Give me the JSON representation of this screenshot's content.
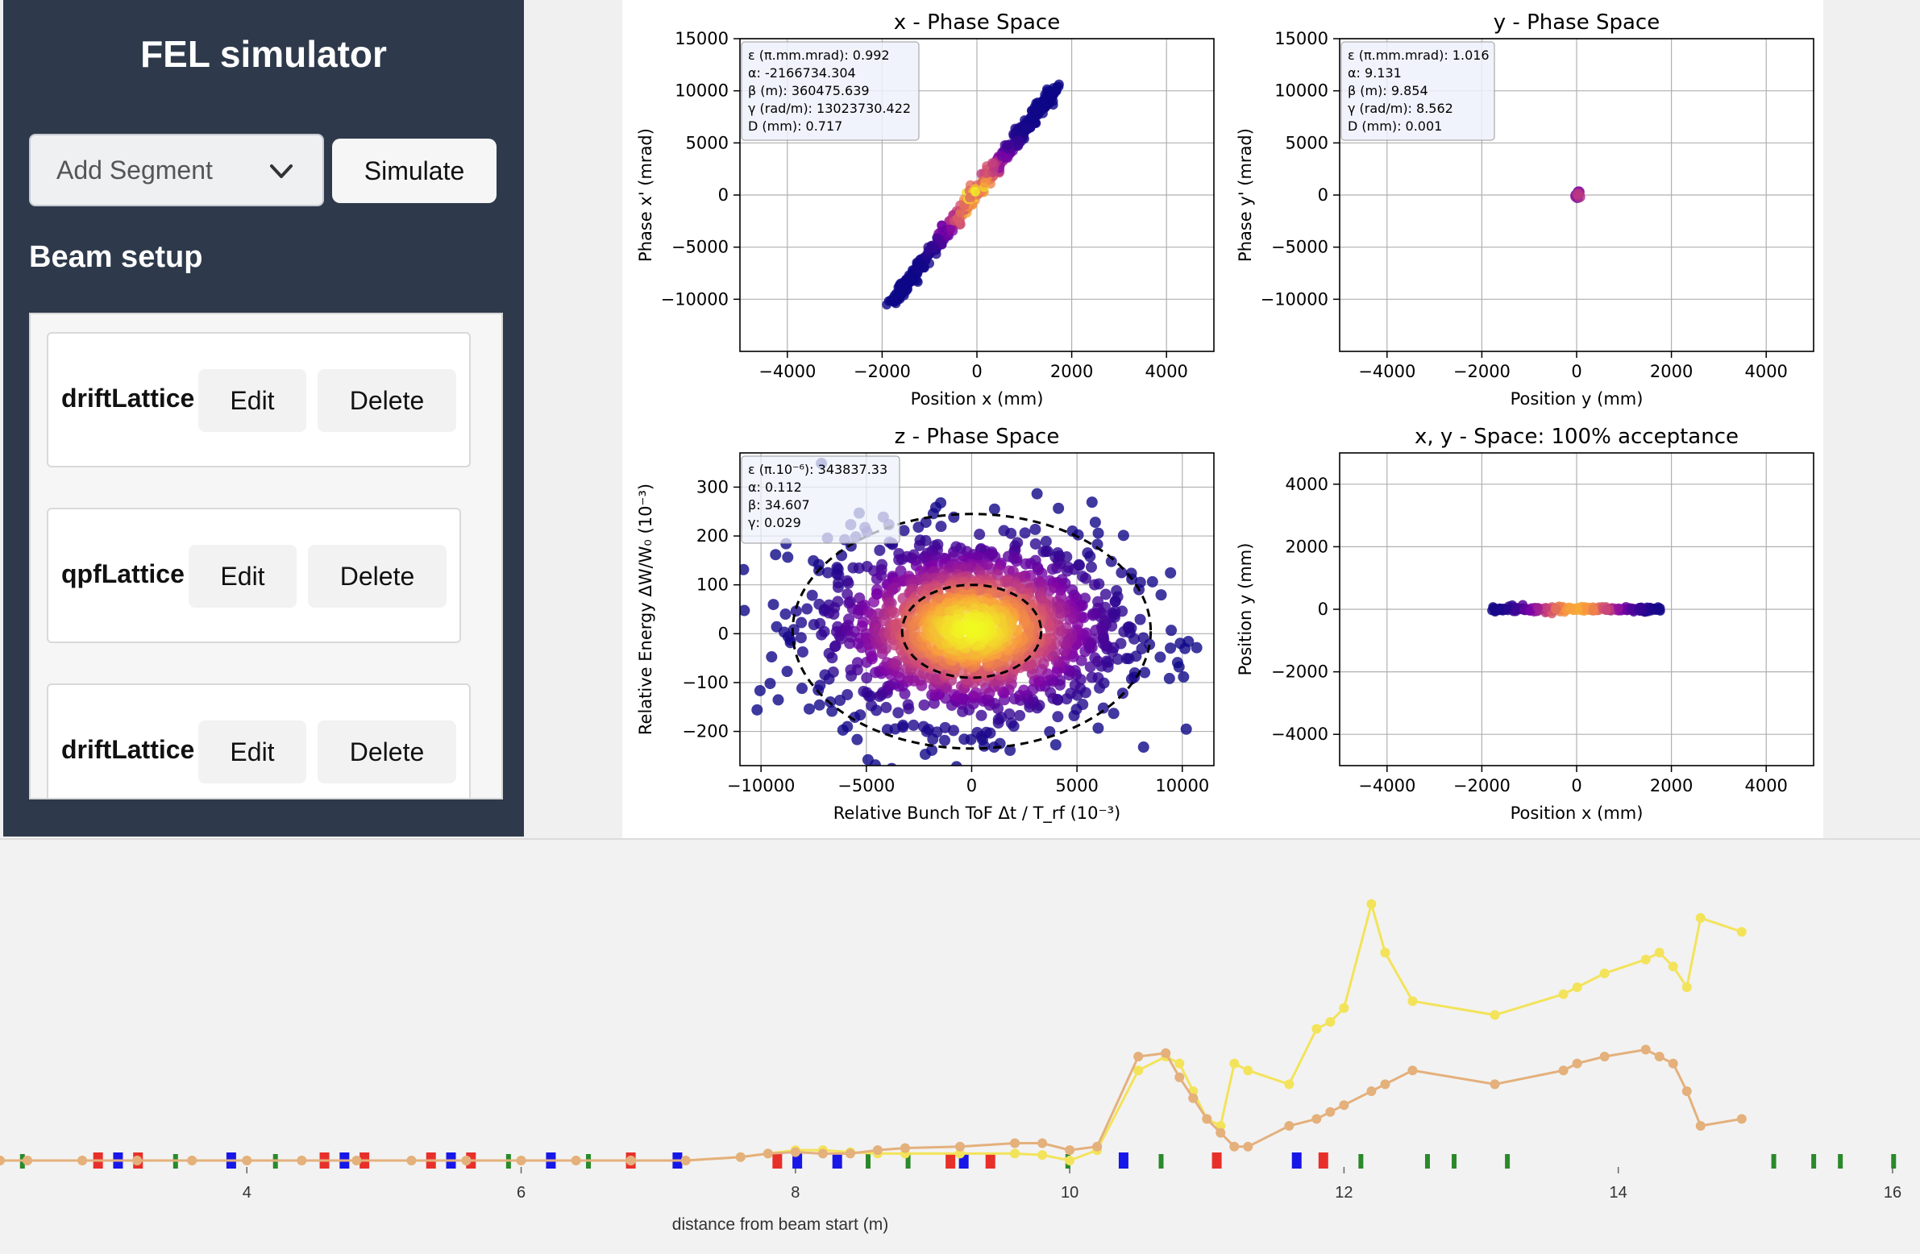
{
  "app": {
    "title": "FEL simulator",
    "add_segment_placeholder": "Add Segment",
    "simulate_label": "Simulate",
    "beam_setup_label": "Beam setup"
  },
  "segments": [
    {
      "name": "driftLattice",
      "edit_label": "Edit",
      "delete_label": "Delete"
    },
    {
      "name": "qpfLattice",
      "edit_label": "Edit",
      "delete_label": "Delete"
    },
    {
      "name": "driftLattice",
      "edit_label": "Edit",
      "delete_label": "Delete"
    }
  ],
  "colors": {
    "sidebar_bg": "#2e3a4b",
    "yellow_line": "#f3e35a",
    "orange_line": "#e4b07c",
    "dipole_red": "#e8302a",
    "quad_blue": "#1717e8",
    "green": "#2a8a2a"
  },
  "chart_data": [
    {
      "type": "scatter",
      "title": "x - Phase Space",
      "xlabel": "Position x (mm)",
      "ylabel": "Phase x' (mrad)",
      "xlim": [
        -5000,
        5000
      ],
      "ylim": [
        -15000,
        15000
      ],
      "xticks": [
        -4000,
        -2000,
        0,
        2000,
        4000
      ],
      "yticks": [
        15000,
        10000,
        5000,
        0,
        -5000,
        -10000
      ],
      "grid": true,
      "annotation": [
        "ε (π.mm.mrad): 0.992",
        "α: -2166734.304",
        "β (m): 360475.639",
        "γ (rad/m): 13023730.422",
        "D (mm): 0.717"
      ],
      "line_extent": {
        "x": [
          -1800,
          1700
        ],
        "y": [
          -10400,
          10500
        ]
      }
    },
    {
      "type": "scatter",
      "title": "y - Phase Space",
      "xlabel": "Position y (mm)",
      "ylabel": "Phase y' (mrad)",
      "xlim": [
        -5000,
        5000
      ],
      "ylim": [
        -15000,
        15000
      ],
      "xticks": [
        -4000,
        -2000,
        0,
        2000,
        4000
      ],
      "yticks": [
        15000,
        10000,
        5000,
        0,
        -5000,
        -10000
      ],
      "grid": true,
      "annotation": [
        "ε (π.mm.mrad): 1.016",
        "α: 9.131",
        "β (m): 9.854",
        "γ (rad/m): 8.562",
        "D (mm): 0.001"
      ],
      "point": {
        "x": 0,
        "y": 0
      }
    },
    {
      "type": "scatter",
      "title": "z - Phase Space",
      "xlabel": "Relative Bunch ToF Δt / T_rf (10⁻³)",
      "ylabel": "Relative Energy ΔW/W₀ (10⁻³)",
      "xlim": [
        -11000,
        11500
      ],
      "ylim": [
        -270,
        370
      ],
      "xticks": [
        -10000,
        -5000,
        0,
        5000,
        10000
      ],
      "yticks": [
        300,
        200,
        100,
        0,
        -100,
        -200
      ],
      "grid": true,
      "annotation": [
        "ε (π.10⁻⁶): 343837.33",
        "α: 0.112",
        "β: 34.607",
        "γ: 0.029"
      ],
      "ellipses": [
        {
          "rx": 8500,
          "ry": 240
        },
        {
          "rx": 3300,
          "ry": 95
        }
      ]
    },
    {
      "type": "scatter",
      "title": "x, y - Space: 100% acceptance",
      "xlabel": "Position x (mm)",
      "ylabel": "Position y (mm)",
      "xlim": [
        -5000,
        5000
      ],
      "ylim": [
        -5000,
        5000
      ],
      "xticks": [
        -4000,
        -2000,
        0,
        2000,
        4000
      ],
      "yticks": [
        4000,
        2000,
        0,
        -2000,
        -4000
      ],
      "grid": true,
      "band": {
        "x": [
          -1800,
          1800
        ],
        "y": 0
      }
    },
    {
      "type": "line",
      "xlabel": "distance from beam start (m)",
      "xlim": [
        2.2,
        16.2
      ],
      "xticks": [
        4,
        6,
        8,
        10,
        12,
        14,
        16
      ],
      "series": [
        {
          "color": "#f3e35a",
          "x": [
            2.2,
            2.4,
            2.8,
            3.2,
            3.6,
            4.0,
            4.4,
            4.8,
            5.2,
            5.6,
            6.0,
            6.4,
            6.8,
            7.2,
            7.6,
            7.8,
            8.0,
            8.2,
            8.4,
            8.6,
            8.8,
            9.2,
            9.6,
            9.8,
            10.0,
            10.2,
            10.5,
            10.7,
            10.8,
            10.9,
            11.0,
            11.1,
            11.2,
            11.3,
            11.6,
            11.8,
            11.9,
            12.0,
            12.2,
            12.3,
            12.5,
            13.1,
            13.6,
            13.7,
            13.9,
            14.2,
            14.3,
            14.4,
            14.5,
            14.6,
            14.9
          ],
          "y": [
            0,
            0,
            0,
            0,
            0,
            0,
            0,
            0,
            0,
            0,
            0,
            0,
            0,
            0,
            0.5,
            1,
            1.5,
            1.5,
            1.2,
            1,
            1,
            1,
            1,
            0.8,
            0,
            1.5,
            13,
            15,
            14,
            10,
            6,
            5,
            14,
            13,
            11,
            19,
            20,
            22,
            37,
            30,
            23,
            21,
            24,
            25,
            27,
            29,
            30,
            28,
            25,
            35,
            33
          ]
        },
        {
          "color": "#e4b07c",
          "x": [
            2.2,
            2.4,
            2.8,
            3.2,
            3.6,
            4.0,
            4.4,
            4.8,
            5.2,
            5.6,
            6.0,
            6.4,
            6.8,
            7.2,
            7.6,
            7.8,
            8.0,
            8.2,
            8.4,
            8.6,
            8.8,
            9.2,
            9.6,
            9.8,
            10.0,
            10.2,
            10.5,
            10.7,
            10.8,
            10.9,
            11.0,
            11.1,
            11.2,
            11.3,
            11.6,
            11.8,
            11.9,
            12.0,
            12.2,
            12.3,
            12.5,
            13.1,
            13.6,
            13.7,
            13.9,
            14.2,
            14.3,
            14.4,
            14.5,
            14.6,
            14.9
          ],
          "y": [
            0,
            0,
            0,
            0,
            0,
            0,
            0,
            0,
            0,
            0,
            0,
            0,
            0,
            0,
            0.5,
            1,
            1.2,
            1,
            1,
            1.5,
            1.8,
            2,
            2.5,
            2.5,
            1.5,
            2,
            15,
            15.5,
            12,
            9,
            6,
            4,
            2,
            2,
            5,
            6,
            7,
            8,
            10,
            11,
            13,
            11,
            13,
            14,
            15,
            16,
            15,
            14,
            10,
            5,
            6
          ]
        }
      ]
    }
  ]
}
